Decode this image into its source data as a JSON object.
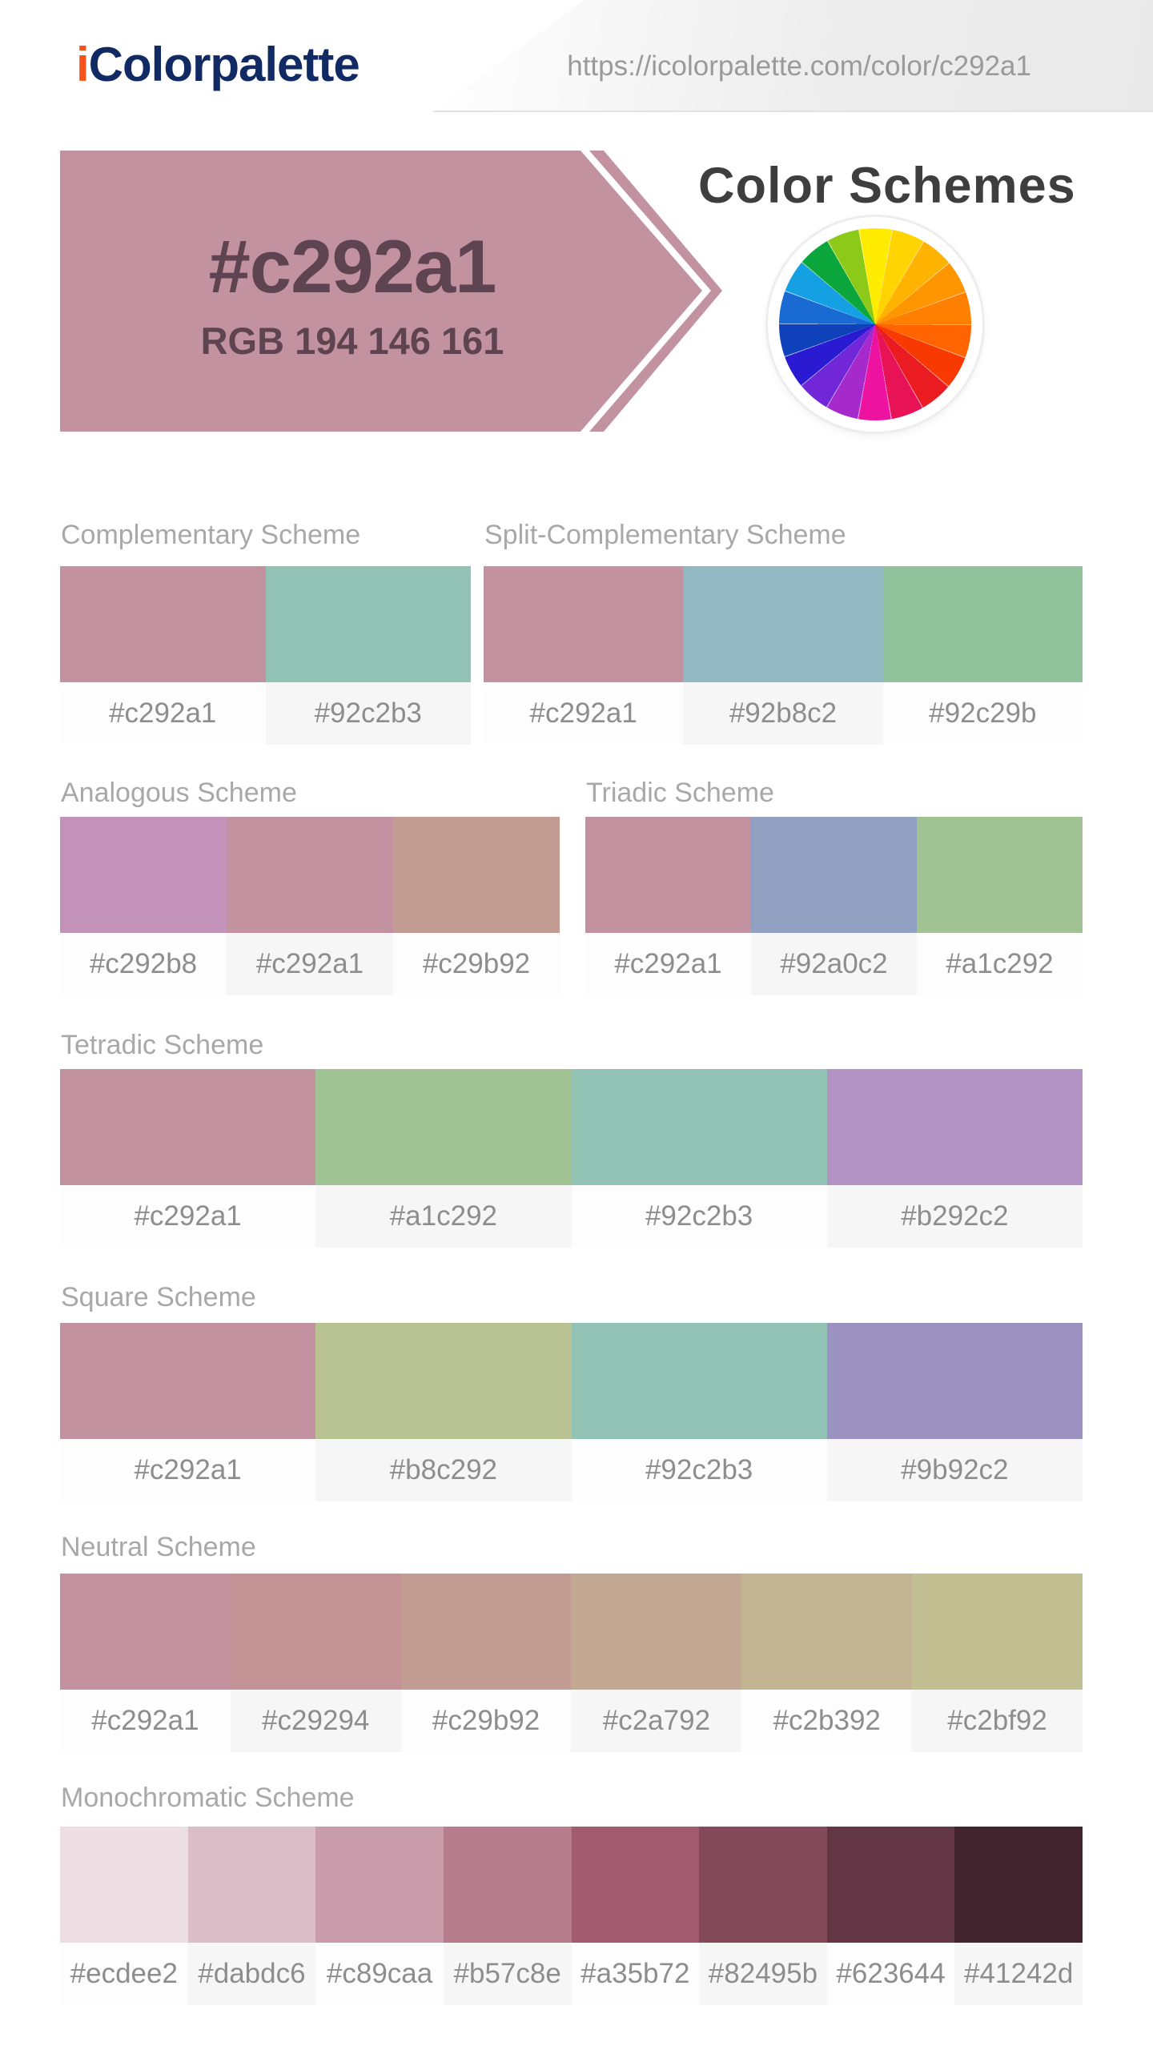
{
  "header": {
    "logo": {
      "accent": "i",
      "rest": "Colorpalette"
    },
    "logo_accent_color": "#f5521d",
    "logo_text_color": "#112a63",
    "url": "https://icolorpalette.com/color/c292a1"
  },
  "banner": {
    "hex": "#c292a1",
    "rgb": "RGB 194 146 161",
    "background": "#c292a1",
    "text_color": "#5e4450"
  },
  "color_schemes_heading": "Color Schemes",
  "color_wheel": {
    "segments": [
      "#ffec00",
      "#ffd400",
      "#ffb300",
      "#ff9600",
      "#ff8000",
      "#ff6400",
      "#f83a00",
      "#ea1c22",
      "#e81356",
      "#ee12a0",
      "#a629cc",
      "#7127d8",
      "#2a1bd2",
      "#0f41bb",
      "#1a6ad4",
      "#14a0e2",
      "#0ba73c",
      "#8cc918"
    ]
  },
  "scheme_rows": [
    {
      "groups": [
        {
          "title": "Complementary Scheme",
          "colors": [
            "#c292a1",
            "#92c2b3"
          ]
        },
        {
          "title": "Split-Complementary Scheme",
          "colors": [
            "#c292a1",
            "#92b8c2",
            "#92c29b"
          ]
        }
      ]
    },
    {
      "groups": [
        {
          "title": "Analogous Scheme",
          "colors": [
            "#c292b8",
            "#c292a1",
            "#c29b92"
          ]
        },
        {
          "title": "Triadic Scheme",
          "colors": [
            "#c292a1",
            "#92a0c2",
            "#a1c292"
          ]
        }
      ]
    },
    {
      "groups": [
        {
          "title": "Tetradic Scheme",
          "colors": [
            "#c292a1",
            "#a1c292",
            "#92c2b3",
            "#b292c2"
          ]
        }
      ]
    },
    {
      "groups": [
        {
          "title": "Square Scheme",
          "colors": [
            "#c292a1",
            "#b8c292",
            "#92c2b3",
            "#9b92c2"
          ]
        }
      ]
    },
    {
      "groups": [
        {
          "title": "Neutral Scheme",
          "colors": [
            "#c292a1",
            "#c29294",
            "#c29b92",
            "#c2a792",
            "#c2b392",
            "#c2bf92"
          ]
        }
      ]
    },
    {
      "groups": [
        {
          "title": "Monochromatic Scheme",
          "colors": [
            "#ecdee2",
            "#dabdc6",
            "#c89caa",
            "#b57c8e",
            "#a35b72",
            "#82495b",
            "#623644",
            "#41242d"
          ]
        }
      ]
    }
  ]
}
